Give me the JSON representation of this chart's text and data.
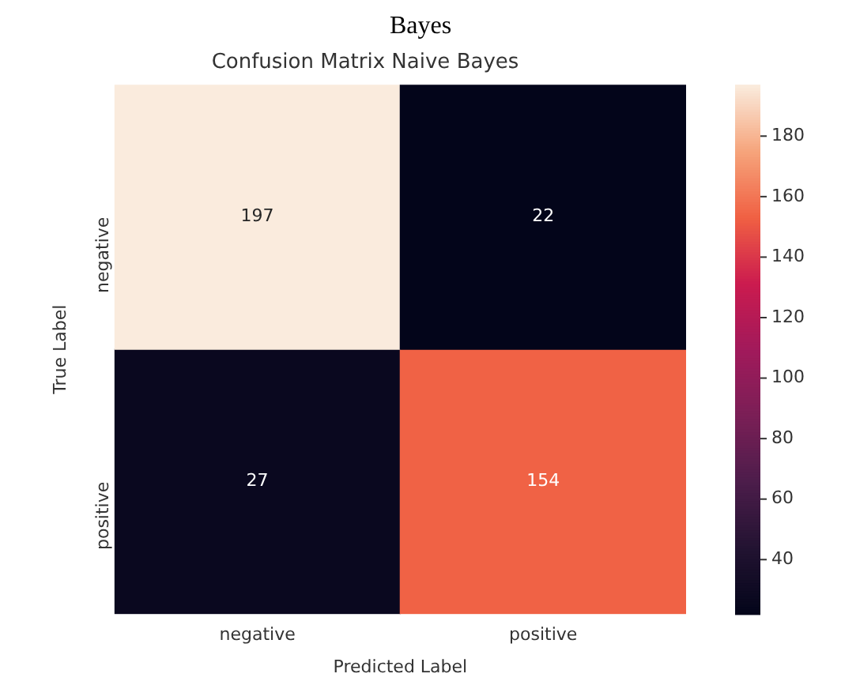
{
  "chart_data": {
    "type": "heatmap",
    "title": "Confusion Matrix Naive Bayes",
    "xlabel": "Predicted Label",
    "ylabel": "True Label",
    "categories": [
      "negative",
      "positive"
    ],
    "y_categories": [
      "negative",
      "positive"
    ],
    "cells": [
      [
        197,
        22
      ],
      [
        27,
        154
      ]
    ],
    "data_labels": true,
    "clim": [
      22,
      197
    ],
    "cticks": [
      40,
      60,
      80,
      100,
      120,
      140,
      160,
      180
    ],
    "annotations": [
      "Bayes"
    ]
  }
}
